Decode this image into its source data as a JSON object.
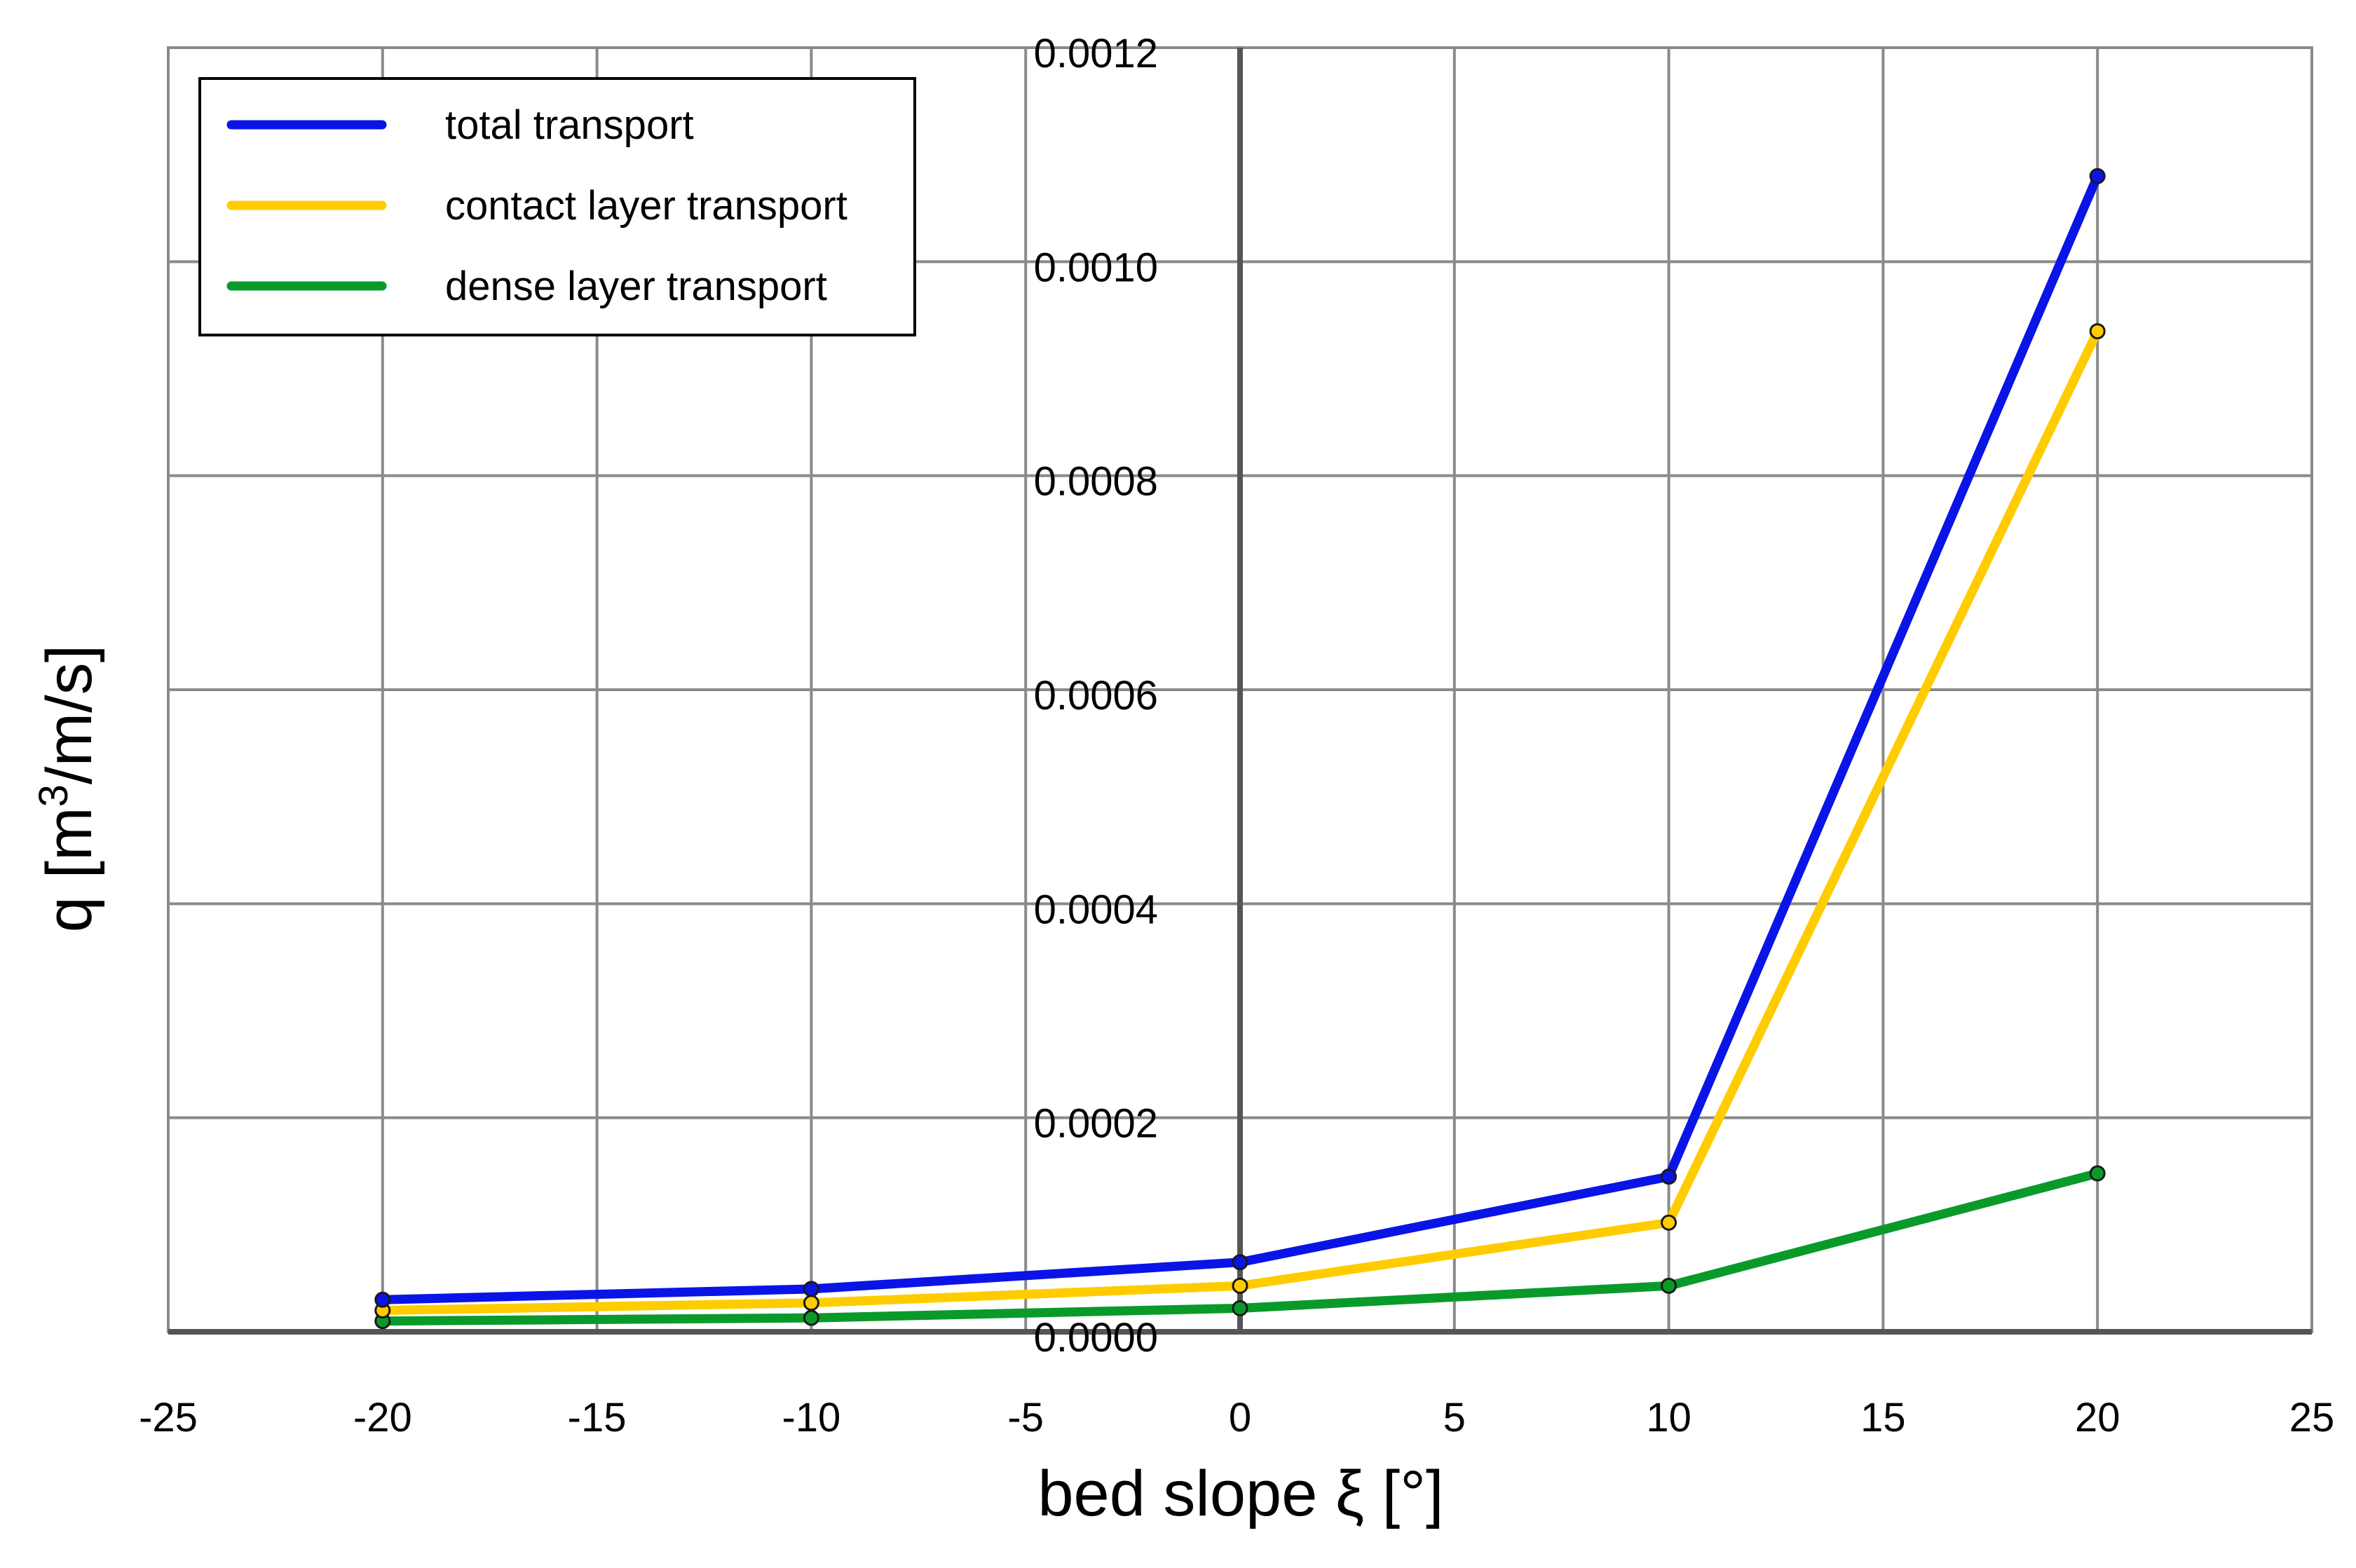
{
  "chart_data": {
    "type": "line",
    "xlabel": "bed slope ξ [°]",
    "ylabel_prefix": "q [m",
    "ylabel_sup": "3",
    "ylabel_suffix": "/m/s]",
    "xlim": [
      -25,
      25
    ],
    "ylim": [
      0,
      0.0012
    ],
    "x_ticks": [
      "-25",
      "-20",
      "-15",
      "-10",
      "-5",
      "0",
      "5",
      "10",
      "15",
      "20",
      "25"
    ],
    "y_ticks": [
      "0.0000",
      "0.0002",
      "0.0004",
      "0.0006",
      "0.0008",
      "0.0010",
      "0.0012"
    ],
    "grid": true,
    "legend_position": "top-left",
    "x": [
      -20,
      -10,
      0,
      10,
      20
    ],
    "series": [
      {
        "name": "total transport",
        "color": "#0a14e6",
        "values": [
          3e-05,
          4e-05,
          6.5e-05,
          0.000145,
          0.00108
        ]
      },
      {
        "name": "contact layer transport",
        "color": "#ffcc00",
        "values": [
          2e-05,
          2.7e-05,
          4.3e-05,
          0.000102,
          0.000935
        ]
      },
      {
        "name": "dense layer transport",
        "color": "#0a9a2a",
        "values": [
          1e-05,
          1.3e-05,
          2.2e-05,
          4.3e-05,
          0.000148
        ]
      }
    ]
  }
}
